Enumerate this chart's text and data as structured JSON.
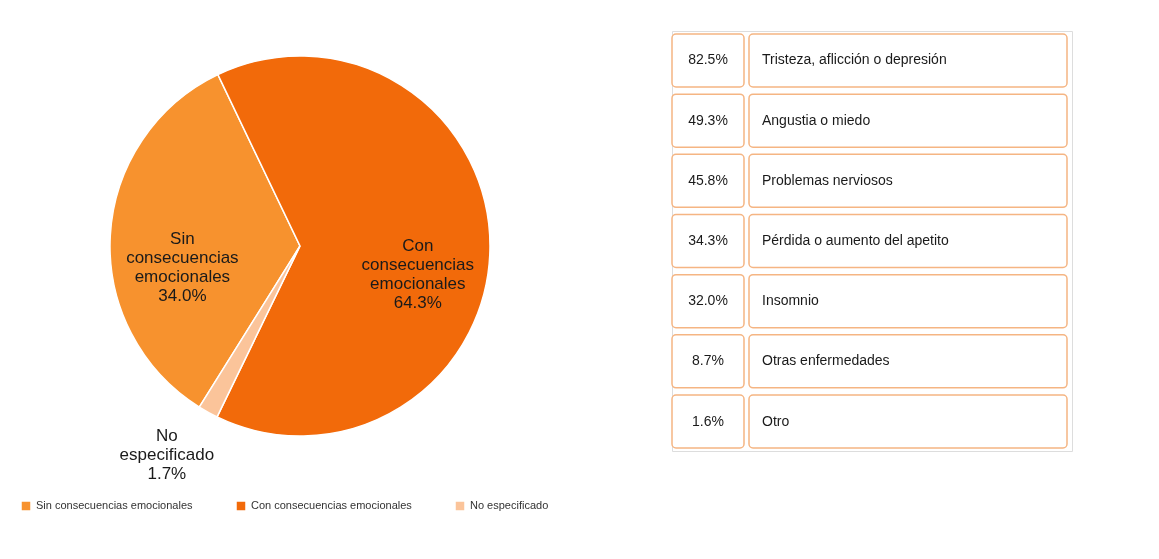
{
  "chart_data": [
    {
      "type": "pie",
      "categories": [
        "Sin consecuencias emocionales",
        "Con consecuencias emocionales",
        "No especificado"
      ],
      "values": [
        34.0,
        64.3,
        1.7
      ],
      "colors": [
        "#f7922e",
        "#f26a0a",
        "#fbc49a"
      ],
      "value_labels": [
        "34.0%",
        "64.3%",
        "1.7%"
      ],
      "legend": "bottom"
    },
    {
      "type": "other",
      "categories": [
        "Tristeza, aflicción o depresión",
        "Angustia o miedo",
        "Problemas nerviosos",
        "Pérdida o aumento del apetito",
        "Insomnio",
        "Otras enfermedades",
        "Otro"
      ],
      "values": [
        82.5,
        49.3,
        45.8,
        34.3,
        32.0,
        8.7,
        1.6
      ],
      "value_labels": [
        "82.5%",
        "49.3%",
        "45.8%",
        "34.3%",
        "32.0%",
        "8.7%",
        "1.6%"
      ],
      "color": "#f5b583"
    }
  ]
}
